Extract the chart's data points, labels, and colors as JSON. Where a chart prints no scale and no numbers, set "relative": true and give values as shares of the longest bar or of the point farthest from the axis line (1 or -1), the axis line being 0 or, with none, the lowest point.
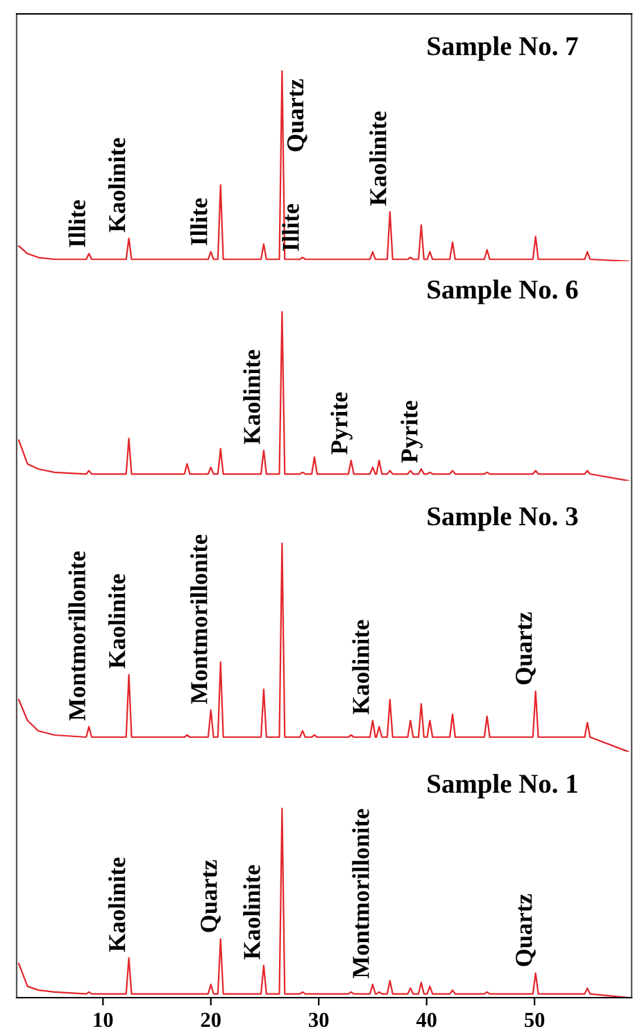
{
  "chart_data": [
    {
      "type": "line",
      "title": "Sample No. 7",
      "relative": true,
      "xlim": [
        2,
        59
      ],
      "xticks": [
        10,
        20,
        30,
        40,
        50
      ],
      "tick_labels": false,
      "x": [
        2.2,
        3,
        4,
        5.5,
        8.45,
        8.7,
        8.95,
        12.15,
        12.4,
        12.65,
        17.55,
        17.8,
        18.05,
        19.75,
        20.0,
        20.25,
        20.65,
        20.9,
        21.15,
        24.65,
        24.9,
        25.15,
        26.35,
        26.6,
        26.85,
        28.25,
        28.5,
        28.75,
        29.35,
        29.6,
        29.85,
        32.75,
        33.0,
        33.25,
        34.75,
        35.0,
        35.25,
        35.35,
        35.6,
        35.85,
        36.35,
        36.6,
        36.85,
        38.25,
        38.5,
        38.75,
        39.25,
        39.5,
        39.75,
        40.05,
        40.3,
        40.55,
        42.15,
        42.4,
        42.65,
        45.35,
        45.6,
        45.85,
        49.85,
        50.1,
        50.35,
        54.65,
        54.9,
        55.15,
        58.7
      ],
      "series": [
        {
          "color": "#e3262b",
          "values": [
            0.08,
            0.04,
            0.02,
            0.01,
            0.01,
            0.04,
            0.01,
            0.01,
            0.12,
            0.01,
            0.01,
            0.01,
            0.01,
            0.01,
            0.05,
            0.01,
            0.01,
            0.4,
            0.01,
            0.01,
            0.09,
            0.01,
            0.01,
            1,
            0.01,
            0.01,
            0.02,
            0.01,
            0.01,
            0.01,
            0.01,
            0.01,
            0.01,
            0.01,
            0.01,
            0.05,
            0.01,
            0.01,
            0.01,
            0.01,
            0.01,
            0.26,
            0.01,
            0.01,
            0.02,
            0.01,
            0.01,
            0.19,
            0.01,
            0.01,
            0.05,
            0.01,
            0.01,
            0.1,
            0.01,
            0.01,
            0.06,
            0.01,
            0.01,
            0.13,
            0.01,
            0.01,
            0.05,
            0.01,
            0
          ]
        }
      ],
      "annotations": [
        {
          "text": "Illite",
          "x": 8.7,
          "y": 0.04
        },
        {
          "text": "Kaolinite",
          "x": 12.4,
          "y": 0.12
        },
        {
          "text": "Illite",
          "x": 20.0,
          "y": 0.05
        },
        {
          "text": "Quartz",
          "x": 26.6,
          "y": 1
        },
        {
          "text": "Illite",
          "x": 28.5,
          "y": 0.02
        },
        {
          "text": "Kaolinite",
          "x": 36.6,
          "y": 0.26
        }
      ]
    },
    {
      "type": "line",
      "title": "Sample No. 6",
      "relative": true,
      "xlim": [
        2,
        59
      ],
      "xticks": [
        10,
        20,
        30,
        40,
        50
      ],
      "tick_labels": false,
      "x": [
        2.2,
        3,
        4,
        5.5,
        8.45,
        8.7,
        8.95,
        12.15,
        12.4,
        12.65,
        17.55,
        17.8,
        18.05,
        19.75,
        20.0,
        20.25,
        20.65,
        20.9,
        21.15,
        24.65,
        24.9,
        25.15,
        26.35,
        26.6,
        26.85,
        28.25,
        28.5,
        28.75,
        29.35,
        29.6,
        29.85,
        32.75,
        33.0,
        33.25,
        34.75,
        35.0,
        35.25,
        35.35,
        35.6,
        35.85,
        36.35,
        36.6,
        36.85,
        38.25,
        38.5,
        38.75,
        39.25,
        39.5,
        39.75,
        40.05,
        40.3,
        40.55,
        42.15,
        42.4,
        42.65,
        45.35,
        45.6,
        45.85,
        49.85,
        50.1,
        50.35,
        54.65,
        54.9,
        55.15,
        58.7
      ],
      "series": [
        {
          "color": "#e3262b",
          "values": [
            0.24,
            0.1,
            0.07,
            0.05,
            0.04,
            0.06,
            0.04,
            0.04,
            0.25,
            0.04,
            0.04,
            0.1,
            0.04,
            0.04,
            0.08,
            0.04,
            0.04,
            0.19,
            0.04,
            0.04,
            0.18,
            0.04,
            0.04,
            1,
            0.04,
            0.04,
            0.05,
            0.04,
            0.04,
            0.14,
            0.04,
            0.04,
            0.12,
            0.04,
            0.04,
            0.08,
            0.04,
            0.04,
            0.12,
            0.04,
            0.04,
            0.06,
            0.04,
            0.04,
            0.06,
            0.04,
            0.04,
            0.07,
            0.04,
            0.04,
            0.05,
            0.04,
            0.04,
            0.06,
            0.04,
            0.04,
            0.05,
            0.04,
            0.04,
            0.06,
            0.04,
            0.04,
            0.06,
            0.04,
            0
          ]
        }
      ],
      "annotations": [
        {
          "text": "Kaolinite",
          "x": 24.9,
          "y": 0.18
        },
        {
          "text": "Pyrite",
          "x": 33.0,
          "y": 0.12
        },
        {
          "text": "Pyrite",
          "x": 39.5,
          "y": 0.07
        }
      ]
    },
    {
      "type": "line",
      "title": "Sample No. 3",
      "relative": true,
      "xlim": [
        2,
        59
      ],
      "xticks": [
        10,
        20,
        30,
        40,
        50
      ],
      "tick_labels": false,
      "x": [
        2.2,
        3,
        4,
        5.5,
        8.45,
        8.7,
        8.95,
        12.15,
        12.4,
        12.65,
        17.55,
        17.8,
        18.05,
        19.75,
        20.0,
        20.25,
        20.65,
        20.9,
        21.15,
        24.65,
        24.9,
        25.15,
        26.35,
        26.6,
        26.85,
        28.25,
        28.5,
        28.75,
        29.35,
        29.6,
        29.85,
        32.75,
        33.0,
        33.25,
        34.75,
        35.0,
        35.25,
        35.35,
        35.6,
        35.85,
        36.35,
        36.6,
        36.85,
        38.25,
        38.5,
        38.75,
        39.25,
        39.5,
        39.75,
        40.05,
        40.3,
        40.55,
        42.15,
        42.4,
        42.65,
        45.35,
        45.6,
        45.85,
        49.85,
        50.1,
        50.35,
        54.65,
        54.9,
        55.15,
        58.7
      ],
      "series": [
        {
          "color": "#e3262b",
          "values": [
            0.25,
            0.15,
            0.1,
            0.08,
            0.07,
            0.12,
            0.07,
            0.07,
            0.37,
            0.07,
            0.07,
            0.08,
            0.07,
            0.07,
            0.2,
            0.07,
            0.07,
            0.43,
            0.07,
            0.07,
            0.3,
            0.07,
            0.07,
            1,
            0.07,
            0.07,
            0.1,
            0.07,
            0.07,
            0.08,
            0.07,
            0.07,
            0.08,
            0.07,
            0.07,
            0.15,
            0.07,
            0.07,
            0.12,
            0.07,
            0.07,
            0.25,
            0.07,
            0.07,
            0.15,
            0.07,
            0.07,
            0.23,
            0.07,
            0.07,
            0.15,
            0.07,
            0.07,
            0.18,
            0.07,
            0.07,
            0.17,
            0.07,
            0.07,
            0.29,
            0.07,
            0.07,
            0.14,
            0.07,
            0
          ]
        }
      ],
      "annotations": [
        {
          "text": "Montmorillonite",
          "x": 8.7,
          "y": 0.12
        },
        {
          "text": "Kaolinite",
          "x": 12.4,
          "y": 0.37
        },
        {
          "text": "Montmorillonite",
          "x": 20.0,
          "y": 0.2
        },
        {
          "text": "Kaolinite",
          "x": 35.0,
          "y": 0.15
        },
        {
          "text": "Quartz",
          "x": 50.1,
          "y": 0.29
        }
      ]
    },
    {
      "type": "line",
      "title": "Sample No. 1",
      "relative": true,
      "xlim": [
        2,
        59
      ],
      "xticks": [
        10,
        20,
        30,
        40,
        50
      ],
      "tick_labels": "x",
      "x": [
        2.2,
        3,
        4,
        5.5,
        8.45,
        8.7,
        8.95,
        12.15,
        12.4,
        12.65,
        17.55,
        17.8,
        18.05,
        19.75,
        20.0,
        20.25,
        20.65,
        20.9,
        21.15,
        24.65,
        24.9,
        25.15,
        26.35,
        26.6,
        26.85,
        28.25,
        28.5,
        28.75,
        29.35,
        29.6,
        29.85,
        32.75,
        33.0,
        33.25,
        34.75,
        35.0,
        35.25,
        35.35,
        35.6,
        35.85,
        36.35,
        36.6,
        36.85,
        38.25,
        38.5,
        38.75,
        39.25,
        39.5,
        39.75,
        40.05,
        40.3,
        40.55,
        42.15,
        42.4,
        42.65,
        45.35,
        45.6,
        45.85,
        49.85,
        50.1,
        50.35,
        54.65,
        54.9,
        55.15,
        58.7
      ],
      "series": [
        {
          "color": "#e3262b",
          "values": [
            0.18,
            0.06,
            0.04,
            0.03,
            0.02,
            0.03,
            0.02,
            0.02,
            0.21,
            0.02,
            0.02,
            0.02,
            0.02,
            0.02,
            0.07,
            0.02,
            0.02,
            0.31,
            0.02,
            0.02,
            0.17,
            0.02,
            0.02,
            1,
            0.02,
            0.02,
            0.03,
            0.02,
            0.02,
            0.02,
            0.02,
            0.02,
            0.03,
            0.02,
            0.02,
            0.07,
            0.02,
            0.02,
            0.03,
            0.02,
            0.02,
            0.09,
            0.02,
            0.02,
            0.05,
            0.02,
            0.02,
            0.08,
            0.02,
            0.02,
            0.06,
            0.02,
            0.02,
            0.04,
            0.02,
            0.02,
            0.03,
            0.02,
            0.02,
            0.13,
            0.02,
            0.02,
            0.05,
            0.02,
            0
          ]
        }
      ],
      "annotations": [
        {
          "text": "Kaolinite",
          "x": 12.4,
          "y": 0.21
        },
        {
          "text": "Quartz",
          "x": 20.9,
          "y": 0.31
        },
        {
          "text": "Kaolinite",
          "x": 24.9,
          "y": 0.17
        },
        {
          "text": "Montmorillonite",
          "x": 35.0,
          "y": 0.07
        },
        {
          "text": "Quartz",
          "x": 50.1,
          "y": 0.13
        }
      ]
    }
  ]
}
